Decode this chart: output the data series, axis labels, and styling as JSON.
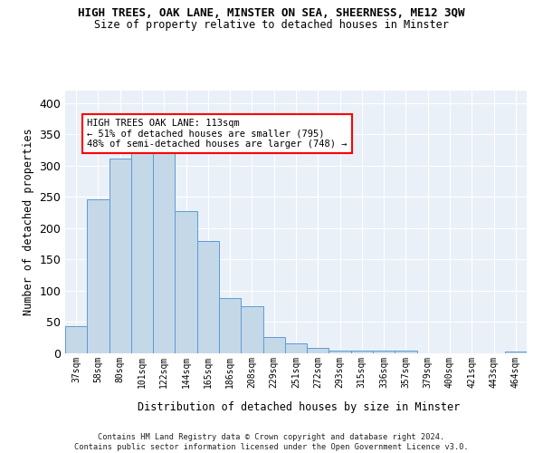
{
  "title": "HIGH TREES, OAK LANE, MINSTER ON SEA, SHEERNESS, ME12 3QW",
  "subtitle": "Size of property relative to detached houses in Minster",
  "xlabel": "Distribution of detached houses by size in Minster",
  "ylabel": "Number of detached properties",
  "categories": [
    "37sqm",
    "58sqm",
    "80sqm",
    "101sqm",
    "122sqm",
    "144sqm",
    "165sqm",
    "186sqm",
    "208sqm",
    "229sqm",
    "251sqm",
    "272sqm",
    "293sqm",
    "315sqm",
    "336sqm",
    "357sqm",
    "379sqm",
    "400sqm",
    "421sqm",
    "443sqm",
    "464sqm"
  ],
  "values": [
    44,
    246,
    312,
    335,
    335,
    228,
    180,
    89,
    75,
    26,
    16,
    9,
    4,
    5,
    5,
    4,
    0,
    0,
    0,
    0,
    3
  ],
  "bar_color": "#c5d8e8",
  "bar_edge_color": "#5b9bd5",
  "annotation_text": "HIGH TREES OAK LANE: 113sqm\n← 51% of detached houses are smaller (795)\n48% of semi-detached houses are larger (748) →",
  "annotation_box_color": "white",
  "annotation_box_edge": "red",
  "ylim": [
    0,
    420
  ],
  "yticks": [
    0,
    50,
    100,
    150,
    200,
    250,
    300,
    350,
    400
  ],
  "bg_color": "#eaf0f8",
  "grid_color": "white",
  "footer": "Contains HM Land Registry data © Crown copyright and database right 2024.\nContains public sector information licensed under the Open Government Licence v3.0."
}
